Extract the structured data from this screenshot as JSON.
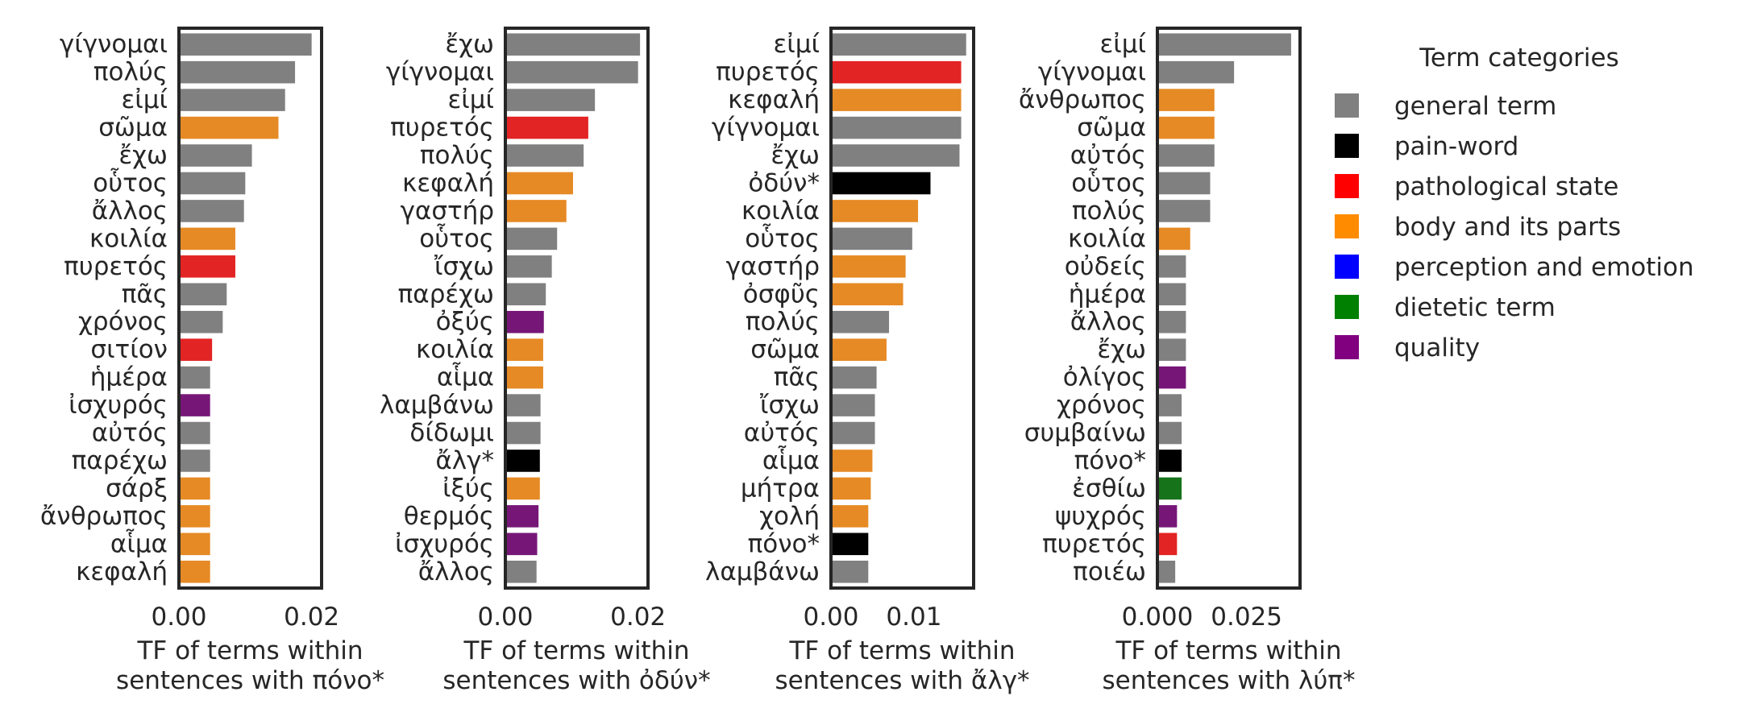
{
  "legend": {
    "title": "Term categories",
    "items": [
      {
        "key": "general",
        "label": "general term",
        "color": "#808080"
      },
      {
        "key": "pain",
        "label": "pain-word",
        "color": "#000000"
      },
      {
        "key": "pathological",
        "label": "pathological state",
        "color": "#ff0000"
      },
      {
        "key": "body",
        "label": "body and its parts",
        "color": "#ff8c00"
      },
      {
        "key": "perception",
        "label": "perception and emotion",
        "color": "#0000ff"
      },
      {
        "key": "dietetic",
        "label": "dietetic term",
        "color": "#008000"
      },
      {
        "key": "quality",
        "label": "quality",
        "color": "#800080"
      }
    ]
  },
  "colors": {
    "general": "#808080",
    "pain": "#000000",
    "pathological": "#e32424",
    "body": "#e68a25",
    "perception": "#2a2ae6",
    "dietetic": "#17731a",
    "quality": "#761777"
  },
  "chart_data": [
    {
      "type": "bar",
      "orientation": "horizontal",
      "xlabel_line1": "TF of terms within",
      "xlabel_line2": "sentences with πόνο*",
      "xlim": [
        0,
        0.0215
      ],
      "xticks": [
        0.0,
        0.02
      ],
      "xticklabels": [
        "0.00",
        "0.02"
      ],
      "categories": [
        "γίγνομαι",
        "πολύς",
        "εἰμί",
        "σῶμα",
        "ἔχω",
        "οὗτος",
        "ἄλλος",
        "κοιλία",
        "πυρετός",
        "πᾶς",
        "χρόνος",
        "σιτίον",
        "ἡμέρα",
        "ἰσχυρός",
        "αὐτός",
        "παρέχω",
        "σάρξ",
        "ἄνθρωπος",
        "αἷμα",
        "κεφαλή"
      ],
      "values": [
        0.02,
        0.0175,
        0.016,
        0.015,
        0.011,
        0.01,
        0.0098,
        0.0085,
        0.0085,
        0.0072,
        0.0066,
        0.005,
        0.0047,
        0.0047,
        0.0047,
        0.0047,
        0.0047,
        0.0047,
        0.0047,
        0.0047
      ],
      "category_types": [
        "general",
        "general",
        "general",
        "body",
        "general",
        "general",
        "general",
        "body",
        "pathological",
        "general",
        "general",
        "pathological",
        "general",
        "quality",
        "general",
        "general",
        "body",
        "body",
        "body",
        "body"
      ]
    },
    {
      "type": "bar",
      "orientation": "horizontal",
      "xlabel_line1": "TF of terms within",
      "xlabel_line2": "sentences with ὀδύν*",
      "xlim": [
        0,
        0.0215
      ],
      "xticks": [
        0.0,
        0.02
      ],
      "xticklabels": [
        "0.00",
        "0.02"
      ],
      "categories": [
        "ἔχω",
        "γίγνομαι",
        "εἰμί",
        "πυρετός",
        "πολύς",
        "κεφαλή",
        "γαστήρ",
        "οὗτος",
        "ἴσχω",
        "παρέχω",
        "ὀξύς",
        "κοιλία",
        "αἷμα",
        "λαμβάνω",
        "δίδωμι",
        "ἄλγ*",
        "ἰξύς",
        "θερμός",
        "ἰσχυρός",
        "ἄλλος"
      ],
      "values": [
        0.0203,
        0.02,
        0.0135,
        0.0125,
        0.0118,
        0.0102,
        0.0092,
        0.0078,
        0.007,
        0.0061,
        0.0058,
        0.0057,
        0.0057,
        0.0053,
        0.0053,
        0.0052,
        0.0052,
        0.005,
        0.0048,
        0.0047
      ],
      "category_types": [
        "general",
        "general",
        "general",
        "pathological",
        "general",
        "body",
        "body",
        "general",
        "general",
        "general",
        "quality",
        "body",
        "body",
        "general",
        "general",
        "pain",
        "body",
        "quality",
        "quality",
        "general"
      ]
    },
    {
      "type": "bar",
      "orientation": "horizontal",
      "xlabel_line1": "TF of terms within",
      "xlabel_line2": "sentences with ἄλγ*",
      "xlim": [
        0,
        0.0172
      ],
      "xticks": [
        0.0,
        0.01
      ],
      "xticklabels": [
        "0.00",
        "0.01"
      ],
      "categories": [
        "εἰμί",
        "πυρετός",
        "κεφαλή",
        "γίγνομαι",
        "ἔχω",
        "ὀδύν*",
        "κοιλία",
        "οὗτος",
        "γαστήρ",
        "ὀσφῦς",
        "πολύς",
        "σῶμα",
        "πᾶς",
        "ἴσχω",
        "αὐτός",
        "αἷμα",
        "μήτρα",
        "χολή",
        "πόνο*",
        "λαμβάνω"
      ],
      "values": [
        0.0163,
        0.0157,
        0.0157,
        0.0157,
        0.0155,
        0.012,
        0.0105,
        0.0098,
        0.009,
        0.0087,
        0.007,
        0.0067,
        0.0055,
        0.0053,
        0.0053,
        0.005,
        0.0048,
        0.0045,
        0.0045,
        0.0045
      ],
      "category_types": [
        "general",
        "pathological",
        "body",
        "general",
        "general",
        "pain",
        "body",
        "general",
        "body",
        "body",
        "general",
        "body",
        "general",
        "general",
        "general",
        "body",
        "body",
        "body",
        "pain",
        "general"
      ]
    },
    {
      "type": "bar",
      "orientation": "horizontal",
      "xlabel_line1": "TF of terms within",
      "xlabel_line2": "sentences with λύπ*",
      "xlim": [
        0,
        0.04
      ],
      "xticks": [
        0.0,
        0.025
      ],
      "xticklabels": [
        "0.000",
        "0.025"
      ],
      "categories": [
        "εἰμί",
        "γίγνομαι",
        "ἄνθρωπος",
        "σῶμα",
        "αὐτός",
        "οὗτος",
        "πολύς",
        "κοιλία",
        "οὐδείς",
        "ἡμέρα",
        "ἄλλος",
        "ἔχω",
        "ὀλίγος",
        "χρόνος",
        "συμβαίνω",
        "πόνο*",
        "ἐσθίω",
        "ψυχρός",
        "πυρετός",
        "ποιέω"
      ],
      "values": [
        0.0375,
        0.0215,
        0.016,
        0.016,
        0.016,
        0.0148,
        0.0148,
        0.0092,
        0.008,
        0.008,
        0.008,
        0.008,
        0.008,
        0.0068,
        0.0068,
        0.0068,
        0.0068,
        0.0055,
        0.0055,
        0.005
      ],
      "category_types": [
        "general",
        "general",
        "body",
        "body",
        "general",
        "general",
        "general",
        "body",
        "general",
        "general",
        "general",
        "general",
        "quality",
        "general",
        "general",
        "pain",
        "dietetic",
        "quality",
        "pathological",
        "general"
      ]
    }
  ]
}
